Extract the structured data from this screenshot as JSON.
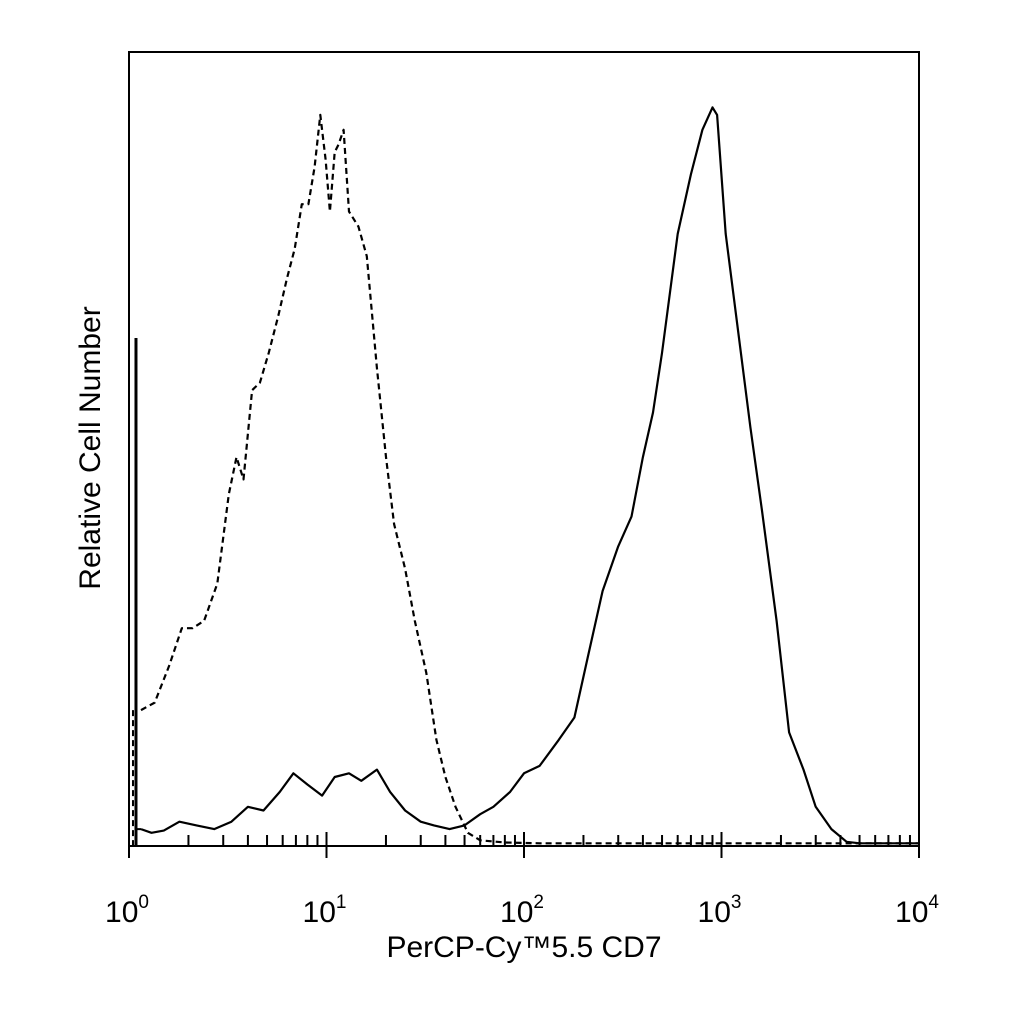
{
  "chart_data": {
    "type": "line",
    "title": "",
    "xlabel": "PerCP-Cy™5.5 CD7",
    "ylabel": "Relative Cell Number",
    "x_scale": "log",
    "xlim": [
      1,
      10000
    ],
    "ylim": [
      0,
      100
    ],
    "grid": false,
    "x_ticks": [
      {
        "base": "10",
        "exp": "0",
        "value": 1
      },
      {
        "base": "10",
        "exp": "1",
        "value": 10
      },
      {
        "base": "10",
        "exp": "2",
        "value": 100
      },
      {
        "base": "10",
        "exp": "3",
        "value": 1000
      },
      {
        "base": "10",
        "exp": "4",
        "value": 10000
      }
    ],
    "series": [
      {
        "style": "dashed",
        "x": [
          1.15,
          1.35,
          1.6,
          1.85,
          2.1,
          2.4,
          2.8,
          3.2,
          3.5,
          3.8,
          4.2,
          4.6,
          5.1,
          5.7,
          6.3,
          6.9,
          7.5,
          8.1,
          8.7,
          9.3,
          9.9,
          10.4,
          11,
          11.5,
          12.2,
          13,
          14.5,
          16,
          18,
          20,
          22,
          25,
          28,
          32,
          36,
          40,
          45,
          52,
          60,
          80,
          120,
          500,
          2000,
          10000
        ],
        "y": [
          18,
          19,
          24,
          29,
          29,
          30,
          35,
          47,
          52,
          49,
          61,
          62,
          66,
          71,
          76,
          80,
          86,
          86,
          91,
          98,
          92,
          85,
          93,
          94,
          96,
          85,
          83,
          79,
          64,
          52,
          43,
          37,
          30,
          23,
          14,
          9,
          5,
          1.5,
          0.5,
          0.2,
          0.1,
          0.1,
          0.1,
          0.1
        ]
      },
      {
        "style": "solid",
        "x": [
          1.15,
          1.3,
          1.5,
          1.8,
          2.2,
          2.7,
          3.3,
          4,
          4.8,
          5.8,
          6.8,
          8,
          9.5,
          11,
          13,
          15,
          18,
          21,
          25,
          30,
          35,
          42,
          50,
          60,
          70,
          85,
          100,
          120,
          150,
          180,
          210,
          250,
          300,
          350,
          400,
          450,
          500,
          600,
          700,
          800,
          900,
          950,
          1050,
          1200,
          1400,
          1600,
          1900,
          2200,
          2600,
          3000,
          3600,
          4300,
          5000,
          10000
        ],
        "y": [
          2,
          1.5,
          1.8,
          3,
          2.5,
          2,
          3,
          5,
          4.5,
          7,
          9.5,
          8,
          6.5,
          9,
          9.5,
          8.5,
          10,
          7,
          4.5,
          3,
          2.5,
          2,
          2.5,
          4,
          5,
          7,
          9.5,
          10.5,
          14,
          17,
          25,
          34,
          40,
          44,
          52,
          58,
          66,
          82,
          90,
          96,
          99,
          98,
          82,
          70,
          56,
          45,
          30,
          15,
          10,
          5,
          2,
          0.3,
          0.1,
          0.1
        ]
      }
    ]
  }
}
